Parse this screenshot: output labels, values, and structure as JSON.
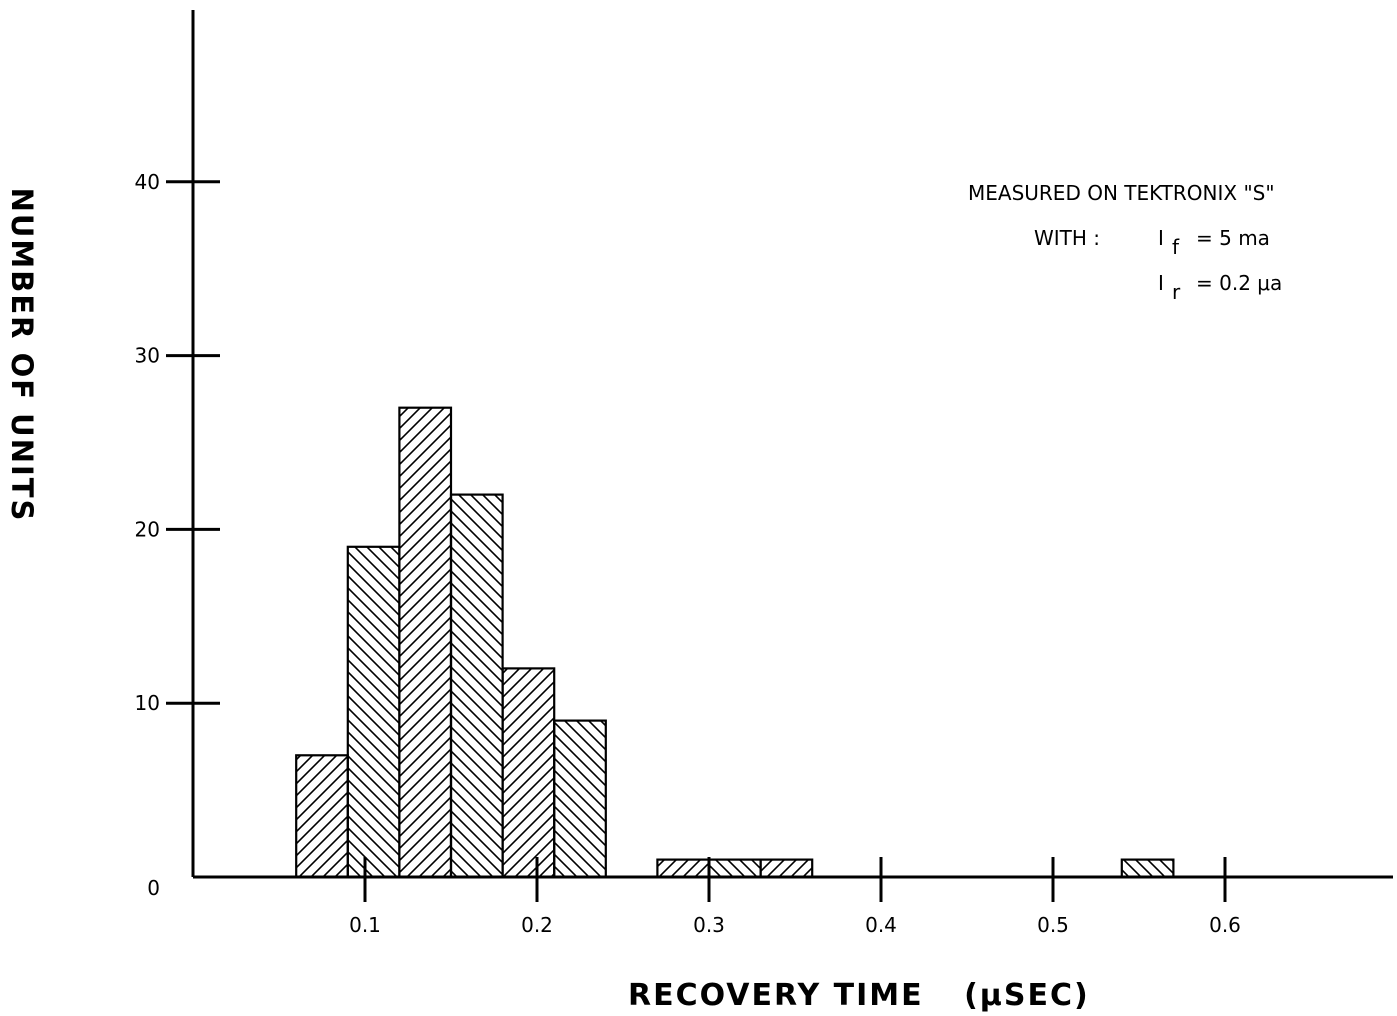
{
  "chart_data": {
    "type": "bar",
    "bin_width": 0.03,
    "bins": [
      {
        "x_start": 0.06,
        "x_end": 0.09,
        "value": 7,
        "hatch": "forward"
      },
      {
        "x_start": 0.09,
        "x_end": 0.12,
        "value": 19,
        "hatch": "back"
      },
      {
        "x_start": 0.12,
        "x_end": 0.15,
        "value": 27,
        "hatch": "forward"
      },
      {
        "x_start": 0.15,
        "x_end": 0.18,
        "value": 22,
        "hatch": "back"
      },
      {
        "x_start": 0.18,
        "x_end": 0.21,
        "value": 12,
        "hatch": "forward"
      },
      {
        "x_start": 0.21,
        "x_end": 0.24,
        "value": 9,
        "hatch": "back"
      },
      {
        "x_start": 0.27,
        "x_end": 0.3,
        "value": 1,
        "hatch": "forward"
      },
      {
        "x_start": 0.3,
        "x_end": 0.33,
        "value": 1,
        "hatch": "back"
      },
      {
        "x_start": 0.33,
        "x_end": 0.36,
        "value": 1,
        "hatch": "forward"
      },
      {
        "x_start": 0.54,
        "x_end": 0.57,
        "value": 1,
        "hatch": "back"
      }
    ],
    "xlabel": "RECOVERY TIME",
    "xlabel_unit": "(μSEC)",
    "ylabel": "NUMBER OF UNITS",
    "xlim": [
      0,
      0.7
    ],
    "ylim": [
      0,
      50
    ],
    "x_ticks": [
      {
        "value": 0.1,
        "label": "0.1"
      },
      {
        "value": 0.2,
        "label": "0.2"
      },
      {
        "value": 0.3,
        "label": "0.3"
      },
      {
        "value": 0.4,
        "label": "0.4"
      },
      {
        "value": 0.5,
        "label": "0.5"
      },
      {
        "value": 0.6,
        "label": "0.6"
      }
    ],
    "y_ticks": [
      {
        "value": 0,
        "label": "0"
      },
      {
        "value": 10,
        "label": "10"
      },
      {
        "value": 20,
        "label": "20"
      },
      {
        "value": 30,
        "label": "30"
      },
      {
        "value": 40,
        "label": "40"
      }
    ],
    "grid": false,
    "bar_fill": "#ffffff",
    "bar_stroke": "#000000",
    "hatch_color": "#000000",
    "annotation": {
      "line1": "MEASURED   ON TEKTRONIX \"S\"",
      "with_label": "WITH :",
      "i_symbol": "I",
      "f_sub": "f",
      "f_value": "= 5 ma",
      "r_sub": "r",
      "r_value": "= 0.2 μa"
    }
  }
}
